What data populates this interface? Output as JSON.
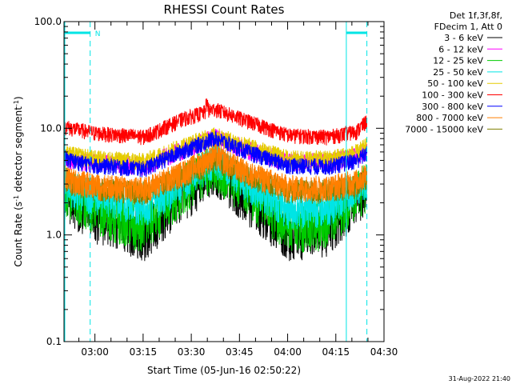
{
  "chart_data": {
    "type": "line",
    "title": "RHESSI Count Rates",
    "xlabel": "Start Time (05-Jun-16 02:50:22)",
    "ylabel_main": "Count Rate (s",
    "ylabel_sup1": "-1",
    "ylabel_mid": " detector segment",
    "ylabel_sup2": "-1",
    "ylabel_end": ")",
    "xscale": "linear",
    "yscale": "log",
    "ylim": [
      0.1,
      100
    ],
    "xlim": [
      "02:50:22",
      "04:30:00"
    ],
    "x_ticks": [
      "03:00",
      "03:15",
      "03:30",
      "03:45",
      "04:00",
      "04:15",
      "04:30"
    ],
    "y_ticks": [
      "0.1",
      "1.0",
      "10.0",
      "100.0"
    ],
    "grid": false,
    "legend_position": "outside-right",
    "legend_header": [
      "Det 1f,3f,8f,",
      "FDecim 1, Att 0"
    ],
    "series": [
      {
        "name": "3 - 6 keV",
        "color": "#000000",
        "shape": [
          [
            0,
            2.6
          ],
          [
            2.2,
            2.3
          ],
          [
            10,
            1.6
          ],
          [
            25,
            1.1
          ],
          [
            37,
            2.5
          ],
          [
            47,
            4.5
          ],
          [
            57,
            2.4
          ],
          [
            70,
            1.1
          ],
          [
            82,
            1.2
          ],
          [
            91,
            2.4
          ],
          [
            94.3,
            2.9
          ]
        ]
      },
      {
        "name": "6 - 12 keV",
        "color": "#ff00ff",
        "shape": [
          [
            0,
            5.5
          ],
          [
            2.2,
            5.2
          ],
          [
            10,
            4.9
          ],
          [
            25,
            4.6
          ],
          [
            37,
            6.5
          ],
          [
            47,
            8.5
          ],
          [
            57,
            6.5
          ],
          [
            70,
            5.0
          ],
          [
            82,
            5.0
          ],
          [
            91,
            5.6
          ],
          [
            94.3,
            6.6
          ]
        ]
      },
      {
        "name": "12 - 25 keV",
        "color": "#00cc00",
        "shape": [
          [
            0,
            3.0
          ],
          [
            2.2,
            2.6
          ],
          [
            10,
            1.9
          ],
          [
            25,
            1.3
          ],
          [
            37,
            3.0
          ],
          [
            47,
            5.0
          ],
          [
            57,
            2.8
          ],
          [
            70,
            1.3
          ],
          [
            82,
            1.4
          ],
          [
            91,
            2.7
          ],
          [
            94.3,
            3.2
          ]
        ]
      },
      {
        "name": "25 - 50 keV",
        "color": "#00e5e5",
        "shape": [
          [
            0,
            3.2
          ],
          [
            2.2,
            2.9
          ],
          [
            10,
            2.4
          ],
          [
            25,
            1.9
          ],
          [
            37,
            3.3
          ],
          [
            47,
            5.5
          ],
          [
            57,
            3.2
          ],
          [
            70,
            1.8
          ],
          [
            82,
            1.9
          ],
          [
            91,
            2.9
          ],
          [
            94.3,
            3.5
          ]
        ]
      },
      {
        "name": "50 - 100 keV",
        "color": "#e5cc00",
        "shape": [
          [
            0,
            6.0
          ],
          [
            2.2,
            5.8
          ],
          [
            10,
            5.3
          ],
          [
            25,
            5.0
          ],
          [
            37,
            7.0
          ],
          [
            47,
            8.8
          ],
          [
            57,
            7.0
          ],
          [
            70,
            5.3
          ],
          [
            82,
            5.3
          ],
          [
            91,
            6.0
          ],
          [
            94.3,
            7.0
          ]
        ]
      },
      {
        "name": "100 - 300 keV",
        "color": "#ff0000",
        "shape": [
          [
            0,
            10.8
          ],
          [
            2.2,
            10.2
          ],
          [
            10,
            9.2
          ],
          [
            25,
            8.5
          ],
          [
            37,
            12.5
          ],
          [
            47,
            15.5
          ],
          [
            57,
            12.0
          ],
          [
            70,
            8.8
          ],
          [
            82,
            8.5
          ],
          [
            91,
            9.5
          ],
          [
            94.3,
            12.0
          ]
        ]
      },
      {
        "name": "300 - 800 keV",
        "color": "#0000ff",
        "shape": [
          [
            0,
            5.5
          ],
          [
            2.2,
            5.1
          ],
          [
            10,
            4.6
          ],
          [
            25,
            4.3
          ],
          [
            37,
            6.3
          ],
          [
            47,
            8.3
          ],
          [
            57,
            6.2
          ],
          [
            70,
            4.6
          ],
          [
            82,
            4.5
          ],
          [
            91,
            5.1
          ],
          [
            94.3,
            6.0
          ]
        ]
      },
      {
        "name": "800 - 7000 keV",
        "color": "#ff7f00",
        "shape": [
          [
            0,
            3.7
          ],
          [
            2.2,
            3.4
          ],
          [
            10,
            3.0
          ],
          [
            25,
            2.8
          ],
          [
            37,
            4.0
          ],
          [
            47,
            5.8
          ],
          [
            57,
            4.0
          ],
          [
            70,
            2.9
          ],
          [
            82,
            2.9
          ],
          [
            91,
            3.3
          ],
          [
            94.3,
            3.9
          ]
        ]
      },
      {
        "name": "7000 - 15000 keV",
        "color": "#7f7f00",
        "shape": [
          [
            0,
            3.4
          ],
          [
            2.2,
            3.1
          ],
          [
            10,
            2.8
          ],
          [
            25,
            2.6
          ],
          [
            37,
            3.7
          ],
          [
            47,
            5.3
          ],
          [
            57,
            3.7
          ],
          [
            70,
            2.7
          ],
          [
            82,
            2.7
          ],
          [
            91,
            3.0
          ],
          [
            94.3,
            3.6
          ]
        ]
      }
    ],
    "flag_label": "N",
    "flag_color": "#00e5e5",
    "date_stamp": "31-Aug-2022 21:40"
  }
}
